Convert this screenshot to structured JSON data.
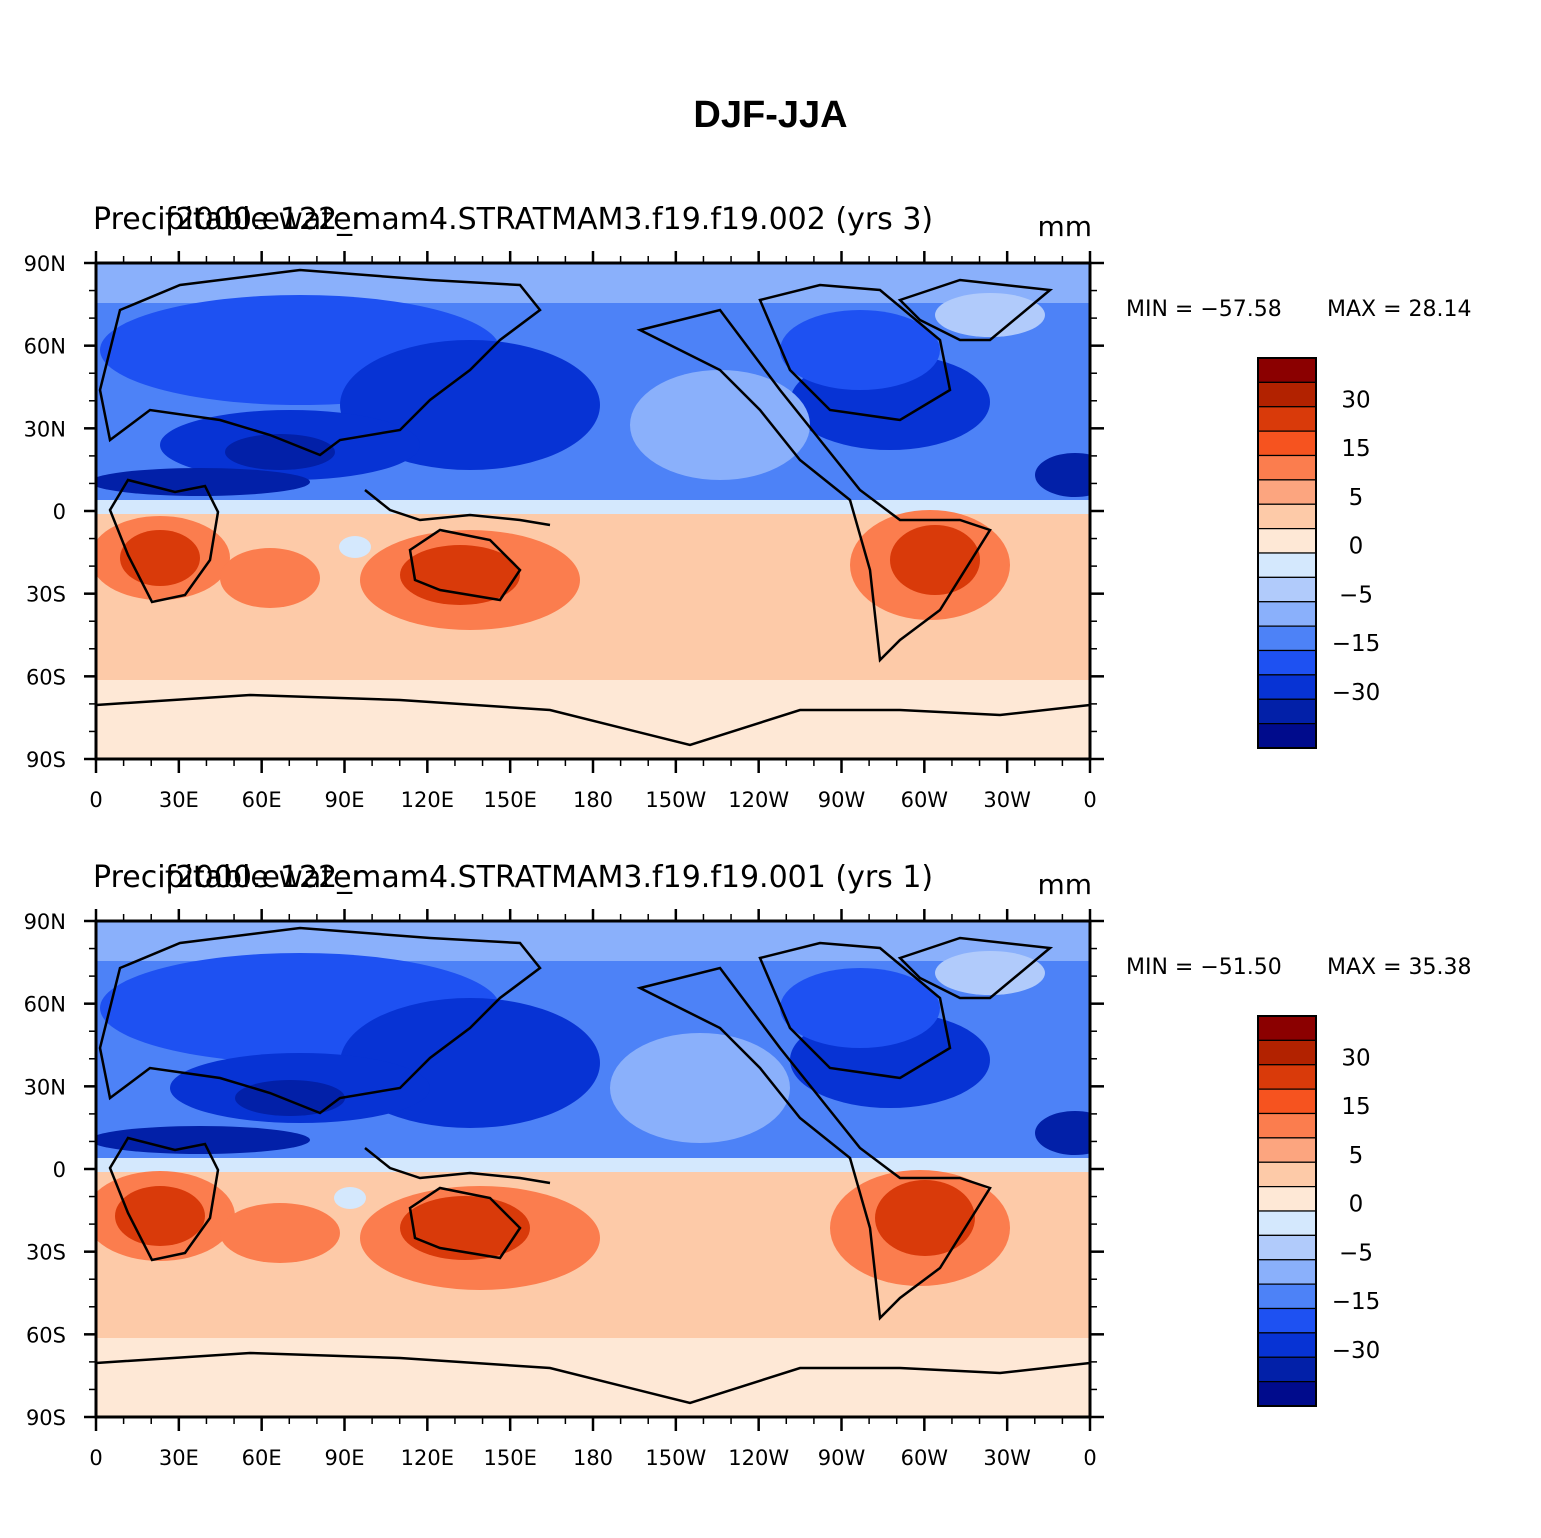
{
  "figure_title": "DJF-JJA",
  "panels": [
    {
      "id": "top",
      "case_title": "f2000.e122_mam4.STRATMAM3.f19.f19.002 (yrs 3)",
      "variable_label": "Precipitable water",
      "units": "mm",
      "min_label": "MIN = −57.58",
      "max_label": "MAX =   28.14"
    },
    {
      "id": "bottom",
      "case_title": "f2000.e122_mam4.STRATMAM3.f19.f19.001 (yrs 1)",
      "variable_label": "Precipitable water",
      "units": "mm",
      "min_label": "MIN = −51.50",
      "max_label": "MAX =   35.38"
    }
  ],
  "lat_ticks": [
    "90N",
    "60N",
    "30N",
    "0",
    "30S",
    "60S",
    "90S"
  ],
  "lon_ticks": [
    "0",
    "30E",
    "60E",
    "90E",
    "120E",
    "150E",
    "180",
    "150W",
    "120W",
    "90W",
    "60W",
    "30W",
    "0"
  ],
  "colorbar": {
    "colors": [
      "#8b0000",
      "#b22200",
      "#d93a0a",
      "#f6531f",
      "#fb7d4e",
      "#fca57f",
      "#fdcaa8",
      "#fee8d6",
      "#d4e8fd",
      "#b1cbfb",
      "#8ab0fb",
      "#4d82f7",
      "#1e51f2",
      "#0733d4",
      "#0220a8",
      "#000b8c"
    ],
    "labels": [
      "30",
      "15",
      "5",
      "0",
      "−5",
      "−15",
      "−30"
    ]
  }
}
